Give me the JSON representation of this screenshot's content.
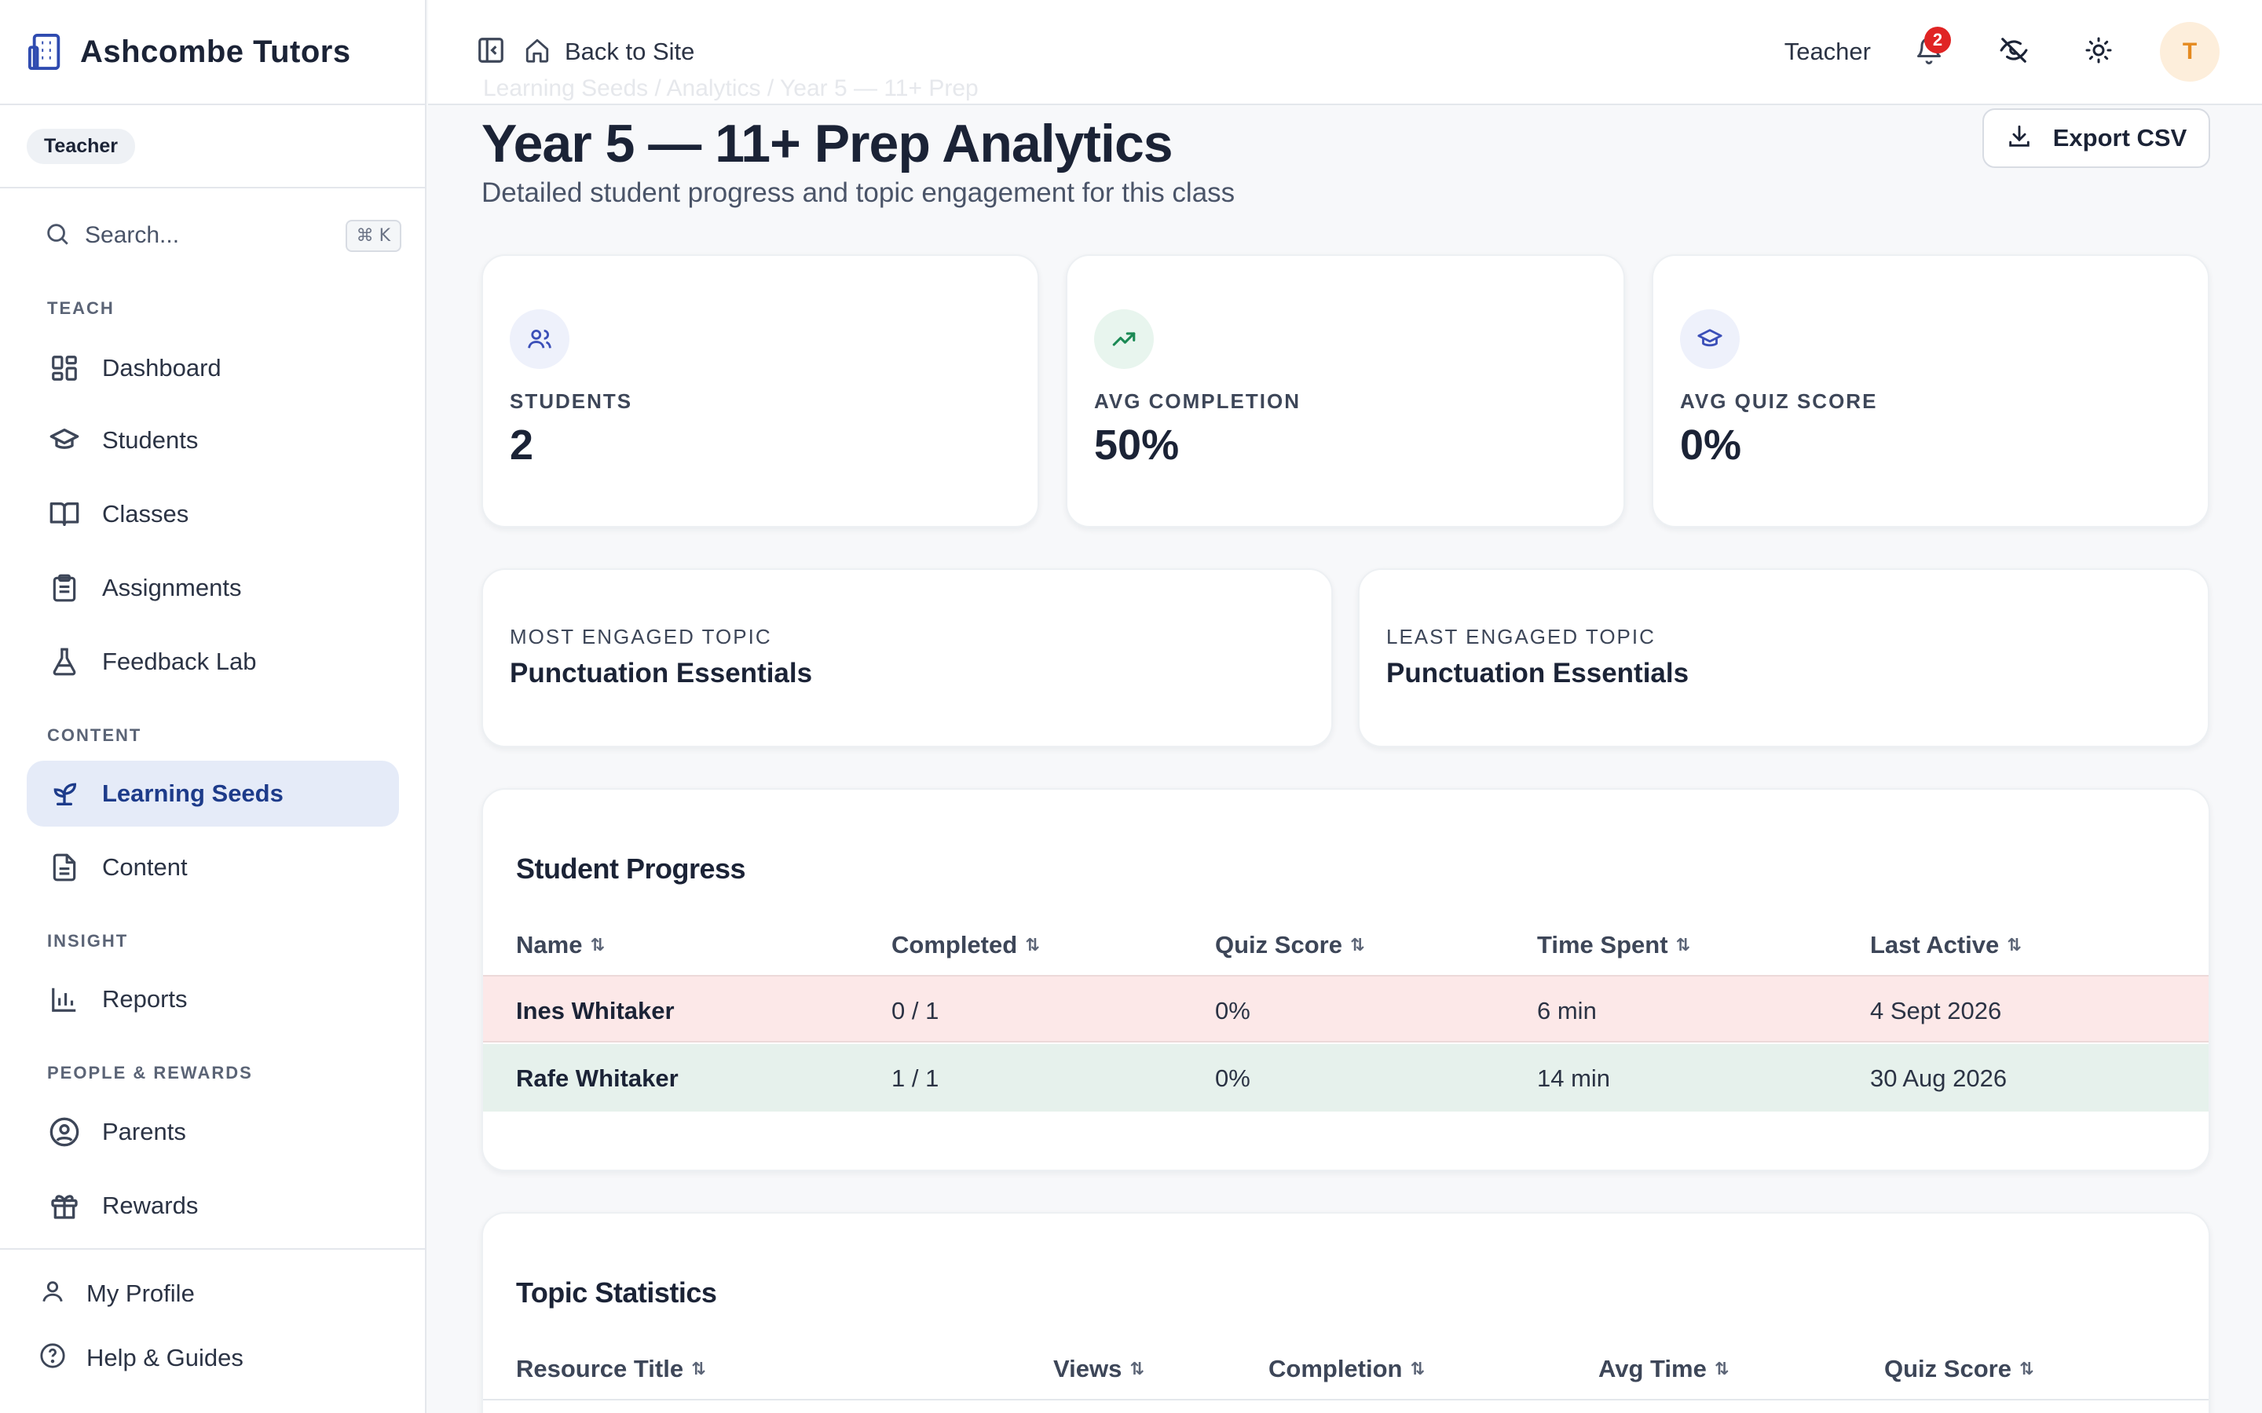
{
  "app": {
    "name": "Ashcombe Tutors",
    "role_badge": "Teacher"
  },
  "search": {
    "placeholder": "Search...",
    "shortcut": "⌘ K"
  },
  "sidebar": {
    "sections": {
      "teach": "TEACH",
      "content": "CONTENT",
      "insight": "INSIGHT",
      "people": "PEOPLE & REWARDS"
    },
    "items": [
      {
        "label": "Dashboard",
        "icon": "dashboard-icon"
      },
      {
        "label": "Students",
        "icon": "graduation-cap-icon"
      },
      {
        "label": "Classes",
        "icon": "book-open-icon"
      },
      {
        "label": "Assignments",
        "icon": "clipboard-icon"
      },
      {
        "label": "Feedback Lab",
        "icon": "flask-icon"
      },
      {
        "label": "Learning Seeds",
        "icon": "sprout-icon",
        "active": true
      },
      {
        "label": "Content",
        "icon": "file-text-icon"
      },
      {
        "label": "Reports",
        "icon": "bar-chart-icon"
      },
      {
        "label": "Parents",
        "icon": "user-circle-icon"
      },
      {
        "label": "Rewards",
        "icon": "gift-icon"
      }
    ],
    "footer": [
      {
        "label": "My Profile",
        "icon": "user-icon"
      },
      {
        "label": "Help & Guides",
        "icon": "help-circle-icon"
      }
    ]
  },
  "topbar": {
    "back_label": "Back to Site",
    "role": "Teacher",
    "notification_count": "2",
    "avatar_initial": "T"
  },
  "page": {
    "breadcrumb": "Learning Seeds / Analytics / Year 5 — 11+ Prep",
    "title": "Year 5 — 11+ Prep Analytics",
    "subtitle": "Detailed student progress and topic engagement for this class",
    "export_label": "Export CSV"
  },
  "stats": [
    {
      "label": "STUDENTS",
      "value": "2",
      "icon": "users-icon",
      "color": "#3b4fb8",
      "bg": "#eef1fb"
    },
    {
      "label": "AVG COMPLETION",
      "value": "50%",
      "icon": "trending-up-icon",
      "color": "#1c8a55",
      "bg": "#e8f5ee"
    },
    {
      "label": "AVG QUIZ SCORE",
      "value": "0%",
      "icon": "graduation-cap-icon",
      "color": "#3b4fb8",
      "bg": "#eef1fb"
    }
  ],
  "topics": {
    "most_label": "MOST ENGAGED TOPIC",
    "most_value": "Punctuation Essentials",
    "least_label": "LEAST ENGAGED TOPIC",
    "least_value": "Punctuation Essentials"
  },
  "student_progress": {
    "title": "Student Progress",
    "columns": [
      "Name",
      "Completed",
      "Quiz Score",
      "Time Spent",
      "Last Active"
    ],
    "rows": [
      {
        "name": "Ines Whitaker",
        "completed": "0 / 1",
        "quiz": "0%",
        "time": "6 min",
        "last": "4 Sept 2026",
        "status_color": "#fce8e8"
      },
      {
        "name": "Rafe Whitaker",
        "completed": "1 / 1",
        "quiz": "0%",
        "time": "14 min",
        "last": "30 Aug 2026",
        "status_color": "#e6f1ec"
      }
    ]
  },
  "topic_statistics": {
    "title": "Topic Statistics",
    "columns": [
      "Resource Title",
      "Views",
      "Completion",
      "Avg Time",
      "Quiz Score"
    ]
  },
  "sort_glyph": "⇅"
}
